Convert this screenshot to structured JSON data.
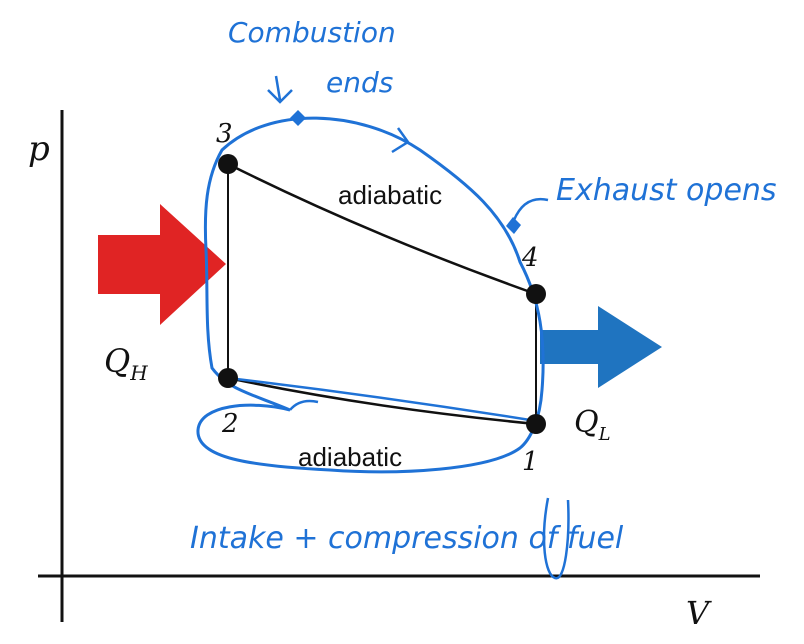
{
  "axes": {
    "y_label": "p",
    "x_label": "V"
  },
  "points": {
    "p1": "1",
    "p2": "2",
    "p3": "3",
    "p4": "4"
  },
  "process_labels": {
    "upper": "adiabatic",
    "lower": "adiabatic"
  },
  "heat": {
    "in_label": "Q",
    "in_sub": "H",
    "out_label": "Q",
    "out_sub": "L",
    "in_color": "#e02424",
    "out_color": "#1f74c0"
  },
  "annotations": {
    "combustion_line1": "Combustion",
    "combustion_line2": "ends",
    "exhaust": "Exhaust opens",
    "intake": "Intake + compression of fuel",
    "ink_color": "#1f72d6"
  }
}
